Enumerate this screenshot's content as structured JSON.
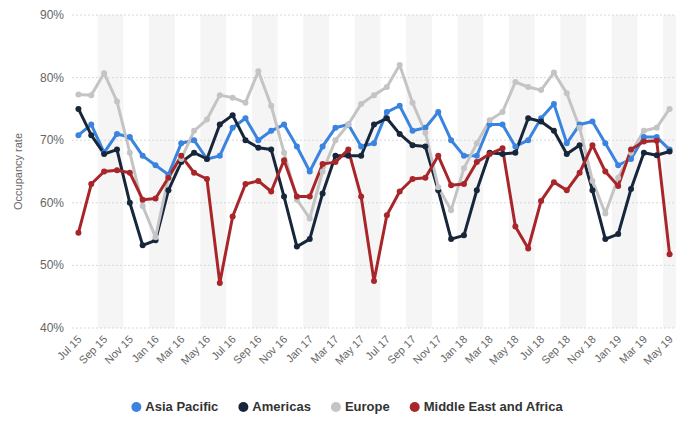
{
  "chart_data": {
    "type": "line",
    "y_label": "Occupancy rate",
    "categories": [
      "Jul 15",
      null,
      "Sep 15",
      null,
      "Nov 15",
      null,
      "Jan 16",
      null,
      "Mar 16",
      null,
      "May 16",
      null,
      "Jul 16",
      null,
      "Sep 16",
      null,
      "Nov 16",
      null,
      "Jan 17",
      null,
      "Mar 17",
      null,
      "May 17",
      null,
      "Jul 17",
      null,
      "Sep 17",
      null,
      "Nov 17",
      null,
      "Jan 18",
      null,
      "Mar 18",
      null,
      "May 18",
      null,
      "Jul 18",
      null,
      "Sep 18",
      null,
      "Nov 18",
      null,
      "Jan 19",
      null,
      "Mar 19",
      null,
      "May 19"
    ],
    "series": [
      {
        "name": "Asia Pacific",
        "color": "#3a84e0",
        "values": [
          70.8,
          72.5,
          68,
          71,
          70.5,
          67.5,
          66,
          64.5,
          69.5,
          70,
          67,
          67.5,
          72,
          73.5,
          70,
          71.5,
          72.5,
          69,
          65,
          69,
          72,
          72.5,
          69,
          69.5,
          74.5,
          75.5,
          71.5,
          72,
          74.5,
          70,
          67.5,
          67.5,
          72.5,
          72.5,
          69,
          70,
          73.5,
          75.8,
          69.5,
          72.5,
          73,
          69.5,
          66,
          67,
          70.5,
          70.5,
          68.5
        ]
      },
      {
        "name": "Americas",
        "color": "#17263a",
        "values": [
          75,
          70.8,
          67.8,
          68.5,
          60,
          53.2,
          54,
          62,
          66.5,
          68,
          67,
          72.5,
          74,
          70,
          68.8,
          68.5,
          61,
          53,
          54.2,
          61.5,
          67.5,
          67.5,
          67.5,
          72.5,
          73.5,
          71,
          69.2,
          69,
          62,
          54.2,
          54.8,
          62,
          68,
          67.8,
          68,
          73.5,
          73,
          71.5,
          67.8,
          69.2,
          62,
          54.2,
          55,
          62.2,
          68,
          67.6,
          68.2
        ]
      },
      {
        "name": "Europe",
        "color": "#c4c4c4",
        "values": [
          77.3,
          77.2,
          80.7,
          76.2,
          68,
          59.5,
          54.5,
          64,
          67,
          71.5,
          73.3,
          77.2,
          76.8,
          76,
          81,
          75.5,
          68,
          60.5,
          57.5,
          65,
          70,
          72.5,
          75.8,
          77.2,
          78.5,
          82,
          76,
          71.2,
          62.5,
          58.8,
          65.5,
          69.5,
          73.2,
          74.5,
          79.3,
          78.5,
          78,
          80.8,
          77.5,
          72,
          63.5,
          58.3,
          64,
          68,
          71.5,
          72,
          75
        ]
      },
      {
        "name": "Middle East and Africa",
        "color": "#a8262a",
        "values": [
          55.2,
          63,
          65,
          65.2,
          64.8,
          60.5,
          60.7,
          64,
          67.5,
          64.8,
          63.8,
          47.2,
          57.8,
          63,
          63.5,
          61.8,
          66.8,
          61,
          61,
          66.2,
          66.5,
          68.5,
          61,
          47.5,
          58,
          61.8,
          63.8,
          64,
          67.5,
          62.8,
          63,
          66.5,
          67.8,
          68.7,
          56.2,
          52.7,
          60.3,
          63.3,
          62,
          64.8,
          69.2,
          65,
          62.7,
          68.5,
          69.8,
          69.9,
          51.8
        ]
      }
    ],
    "ylim": [
      40,
      90
    ],
    "yticks": [
      {
        "value": 40,
        "label": "40%"
      },
      {
        "value": 50,
        "label": "50%"
      },
      {
        "value": 60,
        "label": "60%"
      },
      {
        "value": 70,
        "label": "70%"
      },
      {
        "value": 80,
        "label": "80%"
      },
      {
        "value": 90,
        "label": "90%"
      }
    ],
    "grid": true,
    "legend": "bottom",
    "marker": "circle"
  }
}
